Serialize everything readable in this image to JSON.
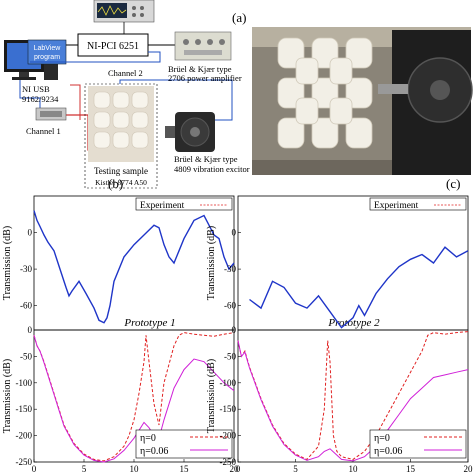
{
  "panel_labels": {
    "a": "(a)",
    "b": "(b)",
    "c": "(c)"
  },
  "setup": {
    "labview_line1": "LabView",
    "labview_line2": "program",
    "ni_pci": "NI-PCI 6251",
    "channel2": "Channel 2",
    "channel1": "Channel 1",
    "ni_usb_line1": "NI USB",
    "ni_usb_line2": "9162/9234",
    "amp_line1": "Brüel & Kjær type",
    "amp_line2": "2706 power amplifier",
    "exc_line1": "Brüel & Kjær type",
    "exc_line2": "4809 vibration excitor",
    "testing_sample": "Testing sample",
    "kistler": "Kistler 8774 A50"
  },
  "colors": {
    "experiment": "#1f35c8",
    "eta0": "#e02020",
    "eta006": "#d020d8",
    "wire_blue": "#2050c0",
    "wire_red": "#d03030",
    "wire_purple": "#8040a0"
  },
  "chart_data": [
    {
      "type": "line",
      "panel": "b",
      "subtitle": "Prototype 1",
      "ylabel": "Transmission (dB)",
      "xlim": [
        0,
        20
      ],
      "top": {
        "ylim": [
          -80,
          30
        ],
        "yticks": [
          -60,
          -30,
          0
        ],
        "legend": "Experiment",
        "series": [
          {
            "name": "Experiment",
            "x": [
              0,
              0.3,
              0.6,
              1,
              1.4,
              2,
              2.6,
              3.2,
              3.5,
              3.8,
              4.5,
              5.2,
              6,
              6.5,
              7,
              7.3,
              7.6,
              8,
              9,
              10,
              11,
              12,
              12.5,
              13,
              13.5,
              14,
              14.5,
              15,
              16,
              17,
              17.5,
              18,
              18.5,
              19,
              19.5,
              20
            ],
            "y": [
              18,
              10,
              5,
              -2,
              -8,
              -15,
              -30,
              -45,
              -52,
              -48,
              -40,
              -50,
              -62,
              -72,
              -74,
              -70,
              -60,
              -40,
              -20,
              -10,
              -2,
              6,
              4,
              -10,
              -20,
              -25,
              -15,
              -5,
              10,
              14,
              6,
              -2,
              -5,
              -20,
              -30,
              -25
            ]
          }
        ]
      },
      "bottom": {
        "ylim": [
          -250,
          0
        ],
        "yticks": [
          -250,
          -200,
          -150,
          -100,
          -50,
          0
        ],
        "xticks": [
          0,
          5,
          10,
          15,
          20
        ],
        "legend": [
          "η=0",
          "η=0.06"
        ],
        "series": [
          {
            "name": "η=0",
            "x": [
              0,
              0.3,
              0.6,
              1,
              1.5,
              2,
              2.5,
              3,
              4,
              5,
              6,
              7,
              8,
              9,
              9.5,
              10,
              10.5,
              11,
              11.2,
              11.5,
              12,
              12.5,
              13,
              14,
              14.5,
              15,
              16,
              17,
              18,
              19,
              20
            ],
            "y": [
              -10,
              -30,
              -40,
              -60,
              -90,
              -120,
              -150,
              -180,
              -215,
              -235,
              -245,
              -248,
              -240,
              -220,
              -200,
              -170,
              -120,
              -60,
              -10,
              -60,
              -140,
              -180,
              -100,
              -30,
              -10,
              -5,
              -8,
              -10,
              -12,
              -8,
              -5
            ]
          },
          {
            "name": "η=0.06",
            "x": [
              0,
              0.3,
              0.6,
              1,
              1.5,
              2,
              2.5,
              3,
              4,
              5,
              6,
              7,
              8,
              9,
              10,
              10.5,
              11,
              11.5,
              12,
              12.5,
              13,
              14,
              15,
              16,
              17,
              18,
              19,
              20
            ],
            "y": [
              -10,
              -30,
              -40,
              -62,
              -92,
              -122,
              -152,
              -182,
              -217,
              -237,
              -247,
              -250,
              -244,
              -228,
              -205,
              -190,
              -175,
              -185,
              -200,
              -205,
              -170,
              -110,
              -75,
              -55,
              -60,
              -80,
              -100,
              -115
            ]
          }
        ]
      }
    },
    {
      "type": "line",
      "panel": "c",
      "subtitle": "Prototype 2",
      "ylabel": "Transmission (dB)",
      "xlim": [
        0,
        20
      ],
      "top": {
        "ylim": [
          -80,
          30
        ],
        "yticks": [
          -60,
          -30,
          0
        ],
        "legend": "Experiment",
        "series": [
          {
            "name": "Experiment",
            "x": [
              1,
              2,
              3,
              4,
              5,
              6,
              7,
              8,
              9,
              10,
              10.5,
              11,
              12,
              13,
              14,
              15,
              16,
              17,
              18,
              19,
              20
            ],
            "y": [
              -55,
              -62,
              -40,
              -45,
              -58,
              -62,
              -52,
              -65,
              -78,
              -70,
              -60,
              -68,
              -50,
              -38,
              -28,
              -22,
              -18,
              -25,
              -12,
              -20,
              -15
            ]
          }
        ]
      },
      "bottom": {
        "ylim": [
          -250,
          0
        ],
        "yticks": [
          -250,
          -200,
          -150,
          -100,
          -50,
          0
        ],
        "xticks": [
          0,
          5,
          10,
          15,
          20
        ],
        "legend": [
          "η=0",
          "η=0.06"
        ],
        "series": [
          {
            "name": "η=0",
            "x": [
              0,
              0.3,
              0.6,
              1,
              1.5,
              2,
              3,
              4,
              5,
              6,
              7,
              7.5,
              7.8,
              8,
              8.3,
              8.6,
              9,
              10,
              11,
              12,
              13,
              14,
              15,
              16,
              16.5,
              17,
              18,
              19,
              20
            ],
            "y": [
              -20,
              -50,
              -40,
              -70,
              -100,
              -130,
              -180,
              -215,
              -235,
              -245,
              -220,
              -150,
              -20,
              -60,
              -200,
              -230,
              -240,
              -245,
              -230,
              -200,
              -160,
              -120,
              -80,
              -40,
              -10,
              -5,
              -8,
              -5,
              -3
            ]
          },
          {
            "name": "η=0.06",
            "x": [
              0,
              0.3,
              0.6,
              1,
              1.5,
              2,
              3,
              4,
              5,
              6,
              7,
              7.5,
              8,
              8.5,
              9,
              10,
              11,
              12,
              13,
              14,
              15,
              16,
              17,
              18,
              19,
              20
            ],
            "y": [
              -20,
              -50,
              -42,
              -72,
              -102,
              -132,
              -182,
              -217,
              -237,
              -247,
              -240,
              -230,
              -225,
              -235,
              -245,
              -248,
              -240,
              -220,
              -190,
              -160,
              -130,
              -110,
              -90,
              -85,
              -80,
              -75
            ]
          }
        ]
      }
    }
  ]
}
